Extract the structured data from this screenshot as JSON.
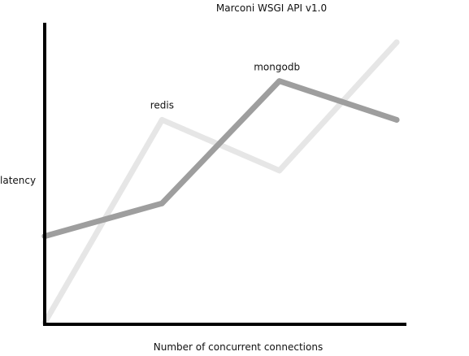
{
  "chart_data": {
    "type": "line",
    "title": "Marconi WSGI API v1.0",
    "xlabel": "Number of concurrent connections",
    "ylabel": "latency",
    "x": [
      0,
      1,
      2,
      3
    ],
    "xlim": [
      0,
      3
    ],
    "ylim": [
      0,
      10
    ],
    "grid": false,
    "legend": "none",
    "series": [
      {
        "name": "redis",
        "values": [
          0,
          6.8,
          5.1,
          9.4
        ],
        "color": "#e6e6e6"
      },
      {
        "name": "mongodb",
        "values": [
          2.9,
          4.0,
          8.1,
          6.8
        ],
        "color": "#9e9e9e"
      }
    ],
    "axis_color": "#000000"
  }
}
